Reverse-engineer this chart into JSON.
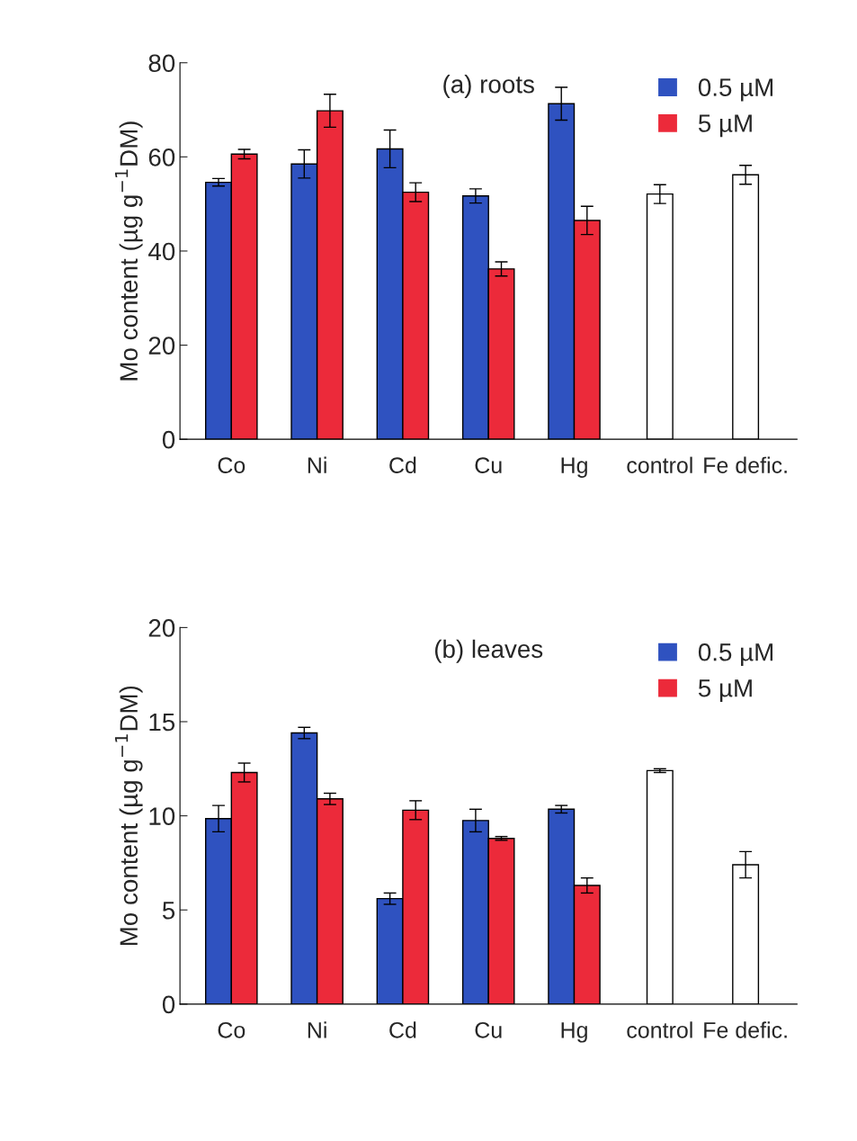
{
  "chart_data": [
    {
      "type": "bar",
      "title": "(a) roots",
      "ylabel": "Mo content (µg g$^{−1}$DM)",
      "categories": [
        "Co",
        "Ni",
        "Cd",
        "Cu",
        "Hg",
        "control",
        "Fe defic."
      ],
      "ylim": [
        0,
        80
      ],
      "yticks": [
        0,
        20,
        40,
        60,
        80
      ],
      "grid": false,
      "legend": "top right",
      "series": [
        {
          "name": "0.5 µM",
          "color": "#2f52c0",
          "values": [
            54.6,
            58.5,
            61.7,
            51.7,
            71.3,
            null,
            null
          ],
          "errors": [
            0.8,
            3,
            4,
            1.5,
            3.5,
            null,
            null
          ]
        },
        {
          "name": "5 µM",
          "color": "#ec2a3a",
          "values": [
            60.6,
            69.8,
            52.5,
            36.2,
            46.5,
            null,
            null
          ],
          "errors": [
            1,
            3.5,
            2,
            1.5,
            3,
            null,
            null
          ]
        },
        {
          "color": "#ffffff",
          "values": [
            null,
            null,
            null,
            null,
            null,
            52.1,
            56.2
          ],
          "errors": [
            null,
            null,
            null,
            null,
            null,
            2,
            2
          ]
        }
      ]
    },
    {
      "type": "bar",
      "title": "(b) leaves",
      "ylabel": "Mo content (µg g$^{−1}$DM)",
      "categories": [
        "Co",
        "Ni",
        "Cd",
        "Cu",
        "Hg",
        "control",
        "Fe defic."
      ],
      "ylim": [
        0,
        20
      ],
      "yticks": [
        0,
        5,
        10,
        15,
        20
      ],
      "grid": false,
      "legend": "top right",
      "series": [
        {
          "name": "0.5 µM",
          "color": "#2f52c0",
          "values": [
            9.85,
            14.4,
            5.6,
            9.75,
            10.35,
            null,
            null
          ],
          "errors": [
            0.7,
            0.3,
            0.3,
            0.6,
            0.2,
            null,
            null
          ]
        },
        {
          "name": "5 µM",
          "color": "#ec2a3a",
          "values": [
            12.3,
            10.9,
            10.3,
            8.8,
            6.3,
            null,
            null
          ],
          "errors": [
            0.5,
            0.3,
            0.5,
            0.1,
            0.4,
            null,
            null
          ]
        },
        {
          "color": "#ffffff",
          "values": [
            null,
            null,
            null,
            null,
            null,
            12.4,
            7.4
          ],
          "errors": [
            null,
            null,
            null,
            null,
            null,
            0.1,
            0.7
          ]
        }
      ]
    }
  ]
}
